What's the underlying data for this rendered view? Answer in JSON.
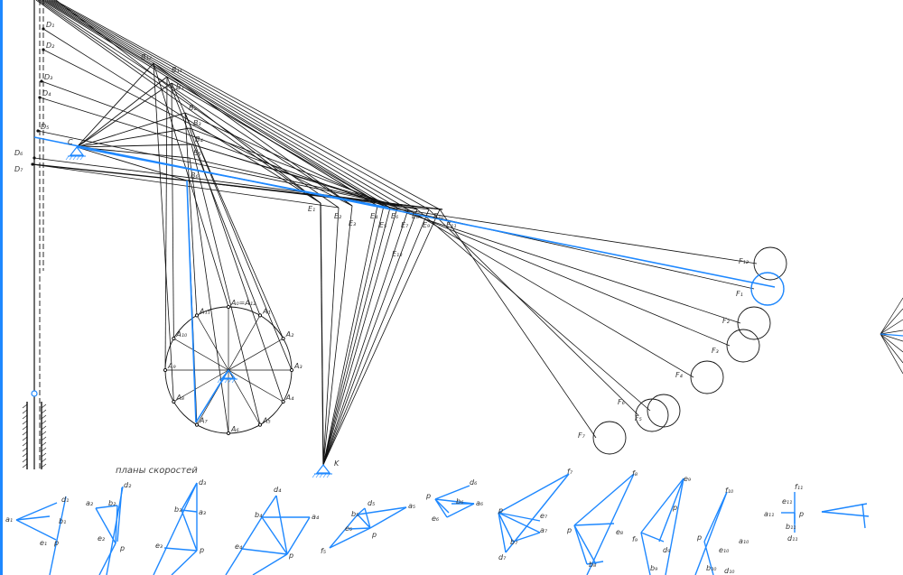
{
  "colors": {
    "mechanism": "#111111",
    "highlight": "#1e88ff",
    "background": "#ffffff"
  },
  "velocity_plans_title": "планы скоростей",
  "mechanism_labels": {
    "pivot_c": "C",
    "pivot_k": "K",
    "d_points": [
      "D₁",
      "D₂",
      "D₃",
      "D₄",
      "D₅",
      "D₆",
      "D₇"
    ],
    "b_points": [
      "B₁₂",
      "B₁₁",
      "B₁",
      "B₂",
      "B₃",
      "B₄",
      "B₅",
      "B₆"
    ],
    "e_points": [
      "E₁",
      "E₂",
      "E₃",
      "E₄",
      "E₅",
      "E₆",
      "E₇",
      "E₈",
      "E₉",
      "E₁₀",
      "E₁₁",
      "E₁₂"
    ],
    "f_points": [
      "F₁₂",
      "F₁",
      "F₂",
      "F₃",
      "F₄",
      "F₅",
      "F₆",
      "F₇"
    ],
    "a_points": [
      "A₁",
      "A₂",
      "A₃",
      "A₄",
      "A₅",
      "A₆",
      "A₇",
      "A₈",
      "A₉",
      "A₁₀",
      "A₁₁",
      "A₀=A₁₂"
    ]
  },
  "velocity_plans": [
    {
      "labels": [
        "a₁",
        "b₁",
        "d₁",
        "e₁",
        "p"
      ]
    },
    {
      "labels": [
        "a₂",
        "b₂",
        "d₂",
        "e₂",
        "p"
      ]
    },
    {
      "labels": [
        "a₃",
        "b₃",
        "d₃",
        "e₃",
        "p"
      ]
    },
    {
      "labels": [
        "a₄",
        "b₄",
        "d₄",
        "e₄",
        "p"
      ]
    },
    {
      "labels": [
        "a₅",
        "b₅",
        "d₅",
        "e₅",
        "f₅",
        "p"
      ]
    },
    {
      "labels": [
        "a₆",
        "b₆",
        "d₆",
        "e₆",
        "p"
      ]
    },
    {
      "labels": [
        "a₇",
        "b₇",
        "d₇",
        "e₇",
        "f₇",
        "p"
      ]
    },
    {
      "labels": [
        "b₈",
        "e₈",
        "f₈",
        "p"
      ]
    },
    {
      "labels": [
        "b₉",
        "d₉",
        "e₉",
        "f₉",
        "p"
      ]
    },
    {
      "labels": [
        "a₁₀",
        "b₁₀",
        "d₁₀",
        "e₁₀",
        "f₁₀",
        "p"
      ]
    },
    {
      "labels": [
        "a₁₁",
        "b₁₁",
        "d₁₁",
        "e₁₁",
        "f₁₁",
        "p"
      ]
    }
  ]
}
